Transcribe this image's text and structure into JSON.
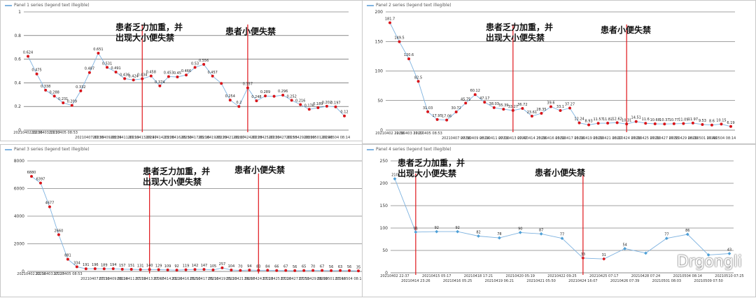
{
  "colors": {
    "line": "#7fb3e0",
    "marker": "#d9151a",
    "marker_alt": "#4d9fd6",
    "vline": "#e0161b",
    "grid": "#444444",
    "axis": "#666666"
  },
  "watermark": {
    "text": "Drgongli"
  },
  "chart_data": [
    {
      "type": "line",
      "legend": "Panel 1 series (legend text illegible)",
      "ylim": [
        0,
        1
      ],
      "yticks": [
        0,
        0.2,
        0.4,
        0.6,
        0.8,
        1
      ],
      "x": [
        "20210402 22:36",
        "",
        "20210403 17:27",
        "",
        "20210405 08:53",
        "",
        "",
        "20210407 07:36",
        "",
        "20210409 08:24",
        "",
        "20210411 07:19",
        "",
        "20210413 07:47",
        "",
        "20210414 23:26",
        "",
        "20210416 05:50",
        "",
        "20210417 05:16",
        "",
        "20210419 05:20",
        "",
        "20210421 06:07",
        "",
        "20210424 07:28",
        "",
        "20210425 07:20",
        "",
        "20210427 07:55",
        "",
        "20210429 08:09",
        "",
        "20210501 07:46",
        "",
        "20210504 08:14",
        ""
      ],
      "values": [
        0.624,
        0.475,
        0.338,
        0.288,
        0.231,
        0.209,
        0.332,
        0.487,
        0.651,
        0.531,
        0.491,
        0.436,
        0.424,
        0.434,
        0.458,
        0.374,
        0.453,
        0.45,
        0.466,
        0.53,
        0.556,
        0.457,
        0.395,
        0.254,
        0.2,
        0.357,
        0.248,
        0.289,
        0.286,
        0.296,
        0.252,
        0.216,
        0.176,
        0.189,
        0.202,
        0.197,
        0.12
      ],
      "labels": [
        "0.624",
        "0.475",
        "0.338",
        "0.288",
        "0.231",
        "0.209",
        "0.332",
        "0.487",
        "0.651",
        "0.531",
        "0.491",
        "0.436",
        "0.424",
        "0.434",
        "0.458",
        "0.374",
        "0.453",
        "0.45",
        "0.466",
        "0.53",
        "0.556",
        "0.457",
        "",
        "0.254",
        "0.2",
        "0.357",
        "0.248",
        "0.289",
        "",
        "0.296",
        "0.252",
        "0.216",
        "0.176",
        "0.189",
        "0.202",
        "0.197",
        "0.12"
      ],
      "events": [
        {
          "index": 13,
          "text": "患者乏力加重，并\n出现大小便失禁"
        },
        {
          "index": 25,
          "text": "患者小便失禁"
        }
      ]
    },
    {
      "type": "line",
      "legend": "Panel 2 series (legend text illegible)",
      "ylim": [
        0,
        200
      ],
      "yticks": [
        0,
        50,
        100,
        150,
        200
      ],
      "x": [
        "20210402 22:36",
        "",
        "20210403 17:27",
        "",
        "20210405 08:53",
        "",
        "",
        "20210407 07:36",
        "",
        "20210409 08:24",
        "",
        "20210411 07:19",
        "",
        "20210413 07:47",
        "",
        "20210414 23:26",
        "",
        "20210416 05:50",
        "",
        "20210417 05:16",
        "",
        "20210419 05:20",
        "",
        "20210421 06:07",
        "",
        "20210424 07:28",
        "",
        "20210425 07:20",
        "",
        "20210427 07:55",
        "",
        "20210429 08:09",
        "",
        "20210501 07:46",
        "",
        "20210504 08:14",
        ""
      ],
      "values": [
        181.7,
        149.5,
        120.6,
        82.5,
        31.03,
        17.95,
        17.06,
        30.72,
        45.75,
        60.12,
        47.17,
        38.03,
        35.39,
        33.27,
        36.72,
        23.61,
        28.35,
        39.6,
        33.1,
        37.27,
        12.24,
        8.93,
        11.57,
        11.82,
        12.62,
        10.31,
        14.51,
        11.6,
        10.68,
        10.37,
        10.77,
        11.09,
        11.97,
        9.53,
        8.6,
        10.15,
        6.19
      ],
      "labels": [
        "181.7",
        "149.5",
        "120.6",
        "82.5",
        "31.03",
        "17.95",
        "17.06",
        "30.72",
        "45.75",
        "60.12",
        "47.17",
        "38.03",
        "35.39",
        "33.27",
        "36.72",
        "23.61",
        "28.35",
        "39.6",
        "33.1",
        "37.27",
        "12.24",
        "8.93",
        "11.57",
        "11.82",
        "12.62",
        "10.31",
        "14.51",
        "11.6",
        "10.68",
        "10.37",
        "10.77",
        "11.09",
        "11.97",
        "9.53",
        "8.6",
        "10.15",
        "6.19"
      ],
      "events": [
        {
          "index": 13,
          "text": "患者乏力加重，并\n出现大小便失禁"
        },
        {
          "index": 25,
          "text": "患者小便失禁"
        }
      ]
    },
    {
      "type": "line",
      "legend": "Panel 3 series (legend text illegible)",
      "ylim": [
        0,
        8000
      ],
      "yticks": [
        0,
        2000,
        4000,
        6000,
        8000
      ],
      "x": [
        "20210402 22:36",
        "",
        "20210403 17:27",
        "",
        "20210405 08:53",
        "",
        "",
        "20210407 07:36",
        "",
        "20210409 08:24",
        "",
        "20210411 07:19",
        "",
        "20210413 07:47",
        "",
        "20210414 23:26",
        "",
        "20210416 05:50",
        "",
        "20210417 05:16",
        "",
        "20210419 05:20",
        "",
        "20210421 06:07",
        "",
        "20210424 07:28",
        "",
        "20210425 07:20",
        "",
        "20210427 07:55",
        "",
        "20210429 08:09",
        "",
        "20210501 07:46",
        "",
        "20210504 08:14",
        ""
      ],
      "values": [
        6880,
        6397,
        4677,
        2660,
        881,
        334,
        191,
        196,
        189,
        194,
        157,
        151,
        131,
        140,
        129,
        109,
        92,
        119,
        142,
        147,
        105,
        257,
        104,
        70,
        94,
        83,
        84,
        66,
        67,
        56,
        65,
        70,
        67,
        56,
        63,
        56,
        35
      ],
      "labels": [
        "6880",
        "6397",
        "4677",
        "2660",
        "881",
        "334",
        "191",
        "196",
        "189",
        "194",
        "157",
        "151",
        "131",
        "140",
        "129",
        "109",
        "92",
        "119",
        "142",
        "147",
        "105",
        "257",
        "104",
        "70",
        "94",
        "83",
        "84",
        "66",
        "67",
        "56",
        "65",
        "70",
        "67",
        "56",
        "63",
        "56",
        "35"
      ],
      "events": [
        {
          "index": 13,
          "text": "患者乏力加重，并\n出现大小便失禁"
        },
        {
          "index": 25,
          "text": "患者小便失禁"
        }
      ]
    },
    {
      "type": "line",
      "legend": "Panel 4 series (legend text illegible)",
      "ylim": [
        0,
        250
      ],
      "yticks": [
        0,
        50,
        100,
        150,
        200,
        250
      ],
      "x": [
        "20210402 22:37",
        "20210414 23:26",
        "20210415 05:17",
        "20210416 05:25",
        "20210418 17:21",
        "20210419 06:21",
        "20210420 05:19",
        "20210421 05:50",
        "20210422 09:25",
        "20210424 16:07",
        "20210425 07:17",
        "20210426 07:39",
        "20210428 07:24",
        "20210501 08:03",
        "20210504 08:14",
        "20210509 07:50",
        "20210510 07:25"
      ],
      "values": [
        210,
        91,
        92,
        92,
        82,
        78,
        90,
        87,
        77,
        33,
        31,
        54,
        44,
        77,
        86,
        40,
        43
      ],
      "labels": [
        "210",
        "91",
        "92",
        "92",
        "82",
        "78",
        "90",
        "87",
        "77",
        "33",
        "31",
        "54",
        "",
        "77",
        "86",
        "",
        "43"
      ],
      "events": [
        {
          "index": 1,
          "text": "患者乏力加重，并\n出现大小便失禁"
        },
        {
          "index": 9,
          "text": "患者小便失禁"
        }
      ]
    }
  ]
}
